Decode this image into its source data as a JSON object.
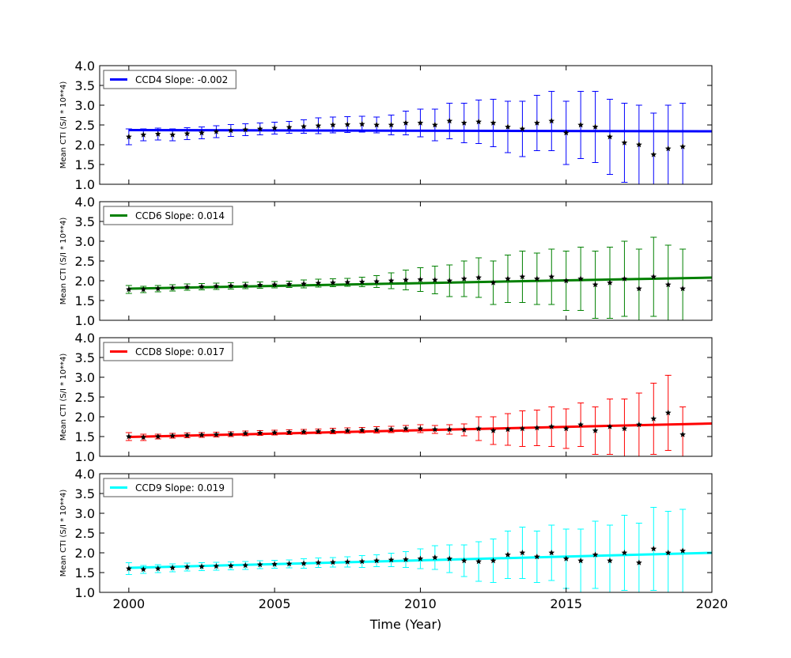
{
  "chart_data": [
    {
      "type": "scatter",
      "series_name": "CCD4 Slope: -0.002",
      "color": "#0000ff",
      "ylabel": "Mean CTI (S/I * 10**4)",
      "xlim": [
        1999,
        2020
      ],
      "ylim": [
        1.0,
        4.0
      ],
      "x": [
        2000.0,
        2000.5,
        2001.0,
        2001.5,
        2002.0,
        2002.5,
        2003.0,
        2003.5,
        2004.0,
        2004.5,
        2005.0,
        2005.5,
        2006.0,
        2006.5,
        2007.0,
        2007.5,
        2008.0,
        2008.5,
        2009.0,
        2009.5,
        2010.0,
        2010.5,
        2011.0,
        2011.5,
        2012.0,
        2012.5,
        2013.0,
        2013.5,
        2014.0,
        2014.5,
        2015.0,
        2015.5,
        2016.0,
        2016.5,
        2017.0,
        2017.5,
        2018.0,
        2018.5,
        2019.0
      ],
      "y": [
        2.2,
        2.25,
        2.27,
        2.25,
        2.28,
        2.3,
        2.33,
        2.36,
        2.38,
        2.4,
        2.42,
        2.44,
        2.46,
        2.48,
        2.5,
        2.51,
        2.52,
        2.5,
        2.5,
        2.55,
        2.55,
        2.5,
        2.6,
        2.55,
        2.58,
        2.55,
        2.45,
        2.4,
        2.55,
        2.6,
        2.3,
        2.5,
        2.45,
        2.2,
        2.05,
        2.0,
        1.75,
        1.9,
        1.95
      ],
      "err": [
        0.2,
        0.15,
        0.15,
        0.15,
        0.15,
        0.15,
        0.15,
        0.15,
        0.15,
        0.15,
        0.15,
        0.15,
        0.17,
        0.2,
        0.2,
        0.2,
        0.2,
        0.2,
        0.25,
        0.3,
        0.35,
        0.4,
        0.45,
        0.5,
        0.55,
        0.6,
        0.65,
        0.7,
        0.7,
        0.75,
        0.8,
        0.85,
        0.9,
        0.95,
        1.0,
        1.0,
        1.05,
        1.1,
        1.1
      ],
      "fit": {
        "x": [
          2000,
          2020
        ],
        "y": [
          2.37,
          2.34
        ]
      }
    },
    {
      "type": "scatter",
      "series_name": "CCD6 Slope: 0.014",
      "color": "#008000",
      "ylabel": "Mean CTI (S/I * 10**4)",
      "xlim": [
        1999,
        2020
      ],
      "ylim": [
        1.0,
        4.0
      ],
      "x": [
        2000.0,
        2000.5,
        2001.0,
        2001.5,
        2002.0,
        2002.5,
        2003.0,
        2003.5,
        2004.0,
        2004.5,
        2005.0,
        2005.5,
        2006.0,
        2006.5,
        2007.0,
        2007.5,
        2008.0,
        2008.5,
        2009.0,
        2009.5,
        2010.0,
        2010.5,
        2011.0,
        2011.5,
        2012.0,
        2012.5,
        2013.0,
        2013.5,
        2014.0,
        2014.5,
        2015.0,
        2015.5,
        2016.0,
        2016.5,
        2017.0,
        2017.5,
        2018.0,
        2018.5,
        2019.0
      ],
      "y": [
        1.78,
        1.78,
        1.8,
        1.82,
        1.84,
        1.85,
        1.86,
        1.87,
        1.88,
        1.89,
        1.9,
        1.91,
        1.92,
        1.94,
        1.95,
        1.96,
        1.97,
        1.98,
        2.0,
        2.02,
        2.03,
        2.02,
        2.0,
        2.05,
        2.08,
        1.95,
        2.05,
        2.1,
        2.05,
        2.1,
        2.0,
        2.05,
        1.9,
        1.95,
        2.05,
        1.8,
        2.1,
        1.9,
        1.8
      ],
      "err": [
        0.1,
        0.08,
        0.08,
        0.08,
        0.08,
        0.08,
        0.08,
        0.08,
        0.08,
        0.08,
        0.08,
        0.08,
        0.1,
        0.1,
        0.1,
        0.1,
        0.12,
        0.15,
        0.2,
        0.25,
        0.3,
        0.35,
        0.4,
        0.45,
        0.5,
        0.55,
        0.6,
        0.65,
        0.65,
        0.7,
        0.75,
        0.8,
        0.85,
        0.9,
        0.95,
        1.0,
        1.0,
        1.0,
        1.0
      ],
      "fit": {
        "x": [
          2000,
          2020
        ],
        "y": [
          1.8,
          2.08
        ]
      }
    },
    {
      "type": "scatter",
      "series_name": "CCD8 Slope: 0.017",
      "color": "#ff0000",
      "ylabel": "Mean CTI (S/I * 10**4)",
      "xlim": [
        1999,
        2020
      ],
      "ylim": [
        1.0,
        4.0
      ],
      "x": [
        2000.0,
        2000.5,
        2001.0,
        2001.5,
        2002.0,
        2002.5,
        2003.0,
        2003.5,
        2004.0,
        2004.5,
        2005.0,
        2005.5,
        2006.0,
        2006.5,
        2007.0,
        2007.5,
        2008.0,
        2008.5,
        2009.0,
        2009.5,
        2010.0,
        2010.5,
        2011.0,
        2011.5,
        2012.0,
        2012.5,
        2013.0,
        2013.5,
        2014.0,
        2014.5,
        2015.0,
        2015.5,
        2016.0,
        2016.5,
        2017.0,
        2017.5,
        2018.0,
        2018.5,
        2019.0
      ],
      "y": [
        1.5,
        1.48,
        1.5,
        1.52,
        1.53,
        1.54,
        1.55,
        1.56,
        1.58,
        1.59,
        1.6,
        1.61,
        1.62,
        1.63,
        1.64,
        1.65,
        1.66,
        1.67,
        1.68,
        1.7,
        1.7,
        1.68,
        1.68,
        1.67,
        1.7,
        1.65,
        1.68,
        1.7,
        1.72,
        1.75,
        1.7,
        1.8,
        1.65,
        1.75,
        1.7,
        1.8,
        1.95,
        2.1,
        1.55
      ],
      "err": [
        0.1,
        0.08,
        0.06,
        0.06,
        0.06,
        0.06,
        0.06,
        0.06,
        0.06,
        0.06,
        0.06,
        0.06,
        0.06,
        0.06,
        0.07,
        0.07,
        0.07,
        0.08,
        0.08,
        0.08,
        0.1,
        0.1,
        0.12,
        0.15,
        0.3,
        0.35,
        0.4,
        0.45,
        0.45,
        0.5,
        0.5,
        0.55,
        0.6,
        0.7,
        0.75,
        0.8,
        0.9,
        0.95,
        0.7
      ],
      "fit": {
        "x": [
          2000,
          2020
        ],
        "y": [
          1.49,
          1.83
        ]
      }
    },
    {
      "type": "scatter",
      "series_name": "CCD9 Slope: 0.019",
      "color": "#00ffff",
      "ylabel": "Mean CTI (S/I * 10**4)",
      "xlabel": "Time (Year)",
      "xlim": [
        1999,
        2020
      ],
      "ylim": [
        1.0,
        4.0
      ],
      "x": [
        2000.0,
        2000.5,
        2001.0,
        2001.5,
        2002.0,
        2002.5,
        2003.0,
        2003.5,
        2004.0,
        2004.5,
        2005.0,
        2005.5,
        2006.0,
        2006.5,
        2007.0,
        2007.5,
        2008.0,
        2008.5,
        2009.0,
        2009.5,
        2010.0,
        2010.5,
        2011.0,
        2011.5,
        2012.0,
        2012.5,
        2013.0,
        2013.5,
        2014.0,
        2014.5,
        2015.0,
        2015.5,
        2016.0,
        2016.5,
        2017.0,
        2017.5,
        2018.0,
        2018.5,
        2019.0
      ],
      "y": [
        1.6,
        1.58,
        1.6,
        1.62,
        1.64,
        1.65,
        1.66,
        1.67,
        1.68,
        1.7,
        1.71,
        1.72,
        1.73,
        1.75,
        1.76,
        1.77,
        1.78,
        1.8,
        1.82,
        1.83,
        1.85,
        1.88,
        1.85,
        1.8,
        1.78,
        1.8,
        1.95,
        2.0,
        1.9,
        2.0,
        1.85,
        1.8,
        1.95,
        1.8,
        2.0,
        1.75,
        2.1,
        2.0,
        2.05
      ],
      "err": [
        0.15,
        0.1,
        0.1,
        0.1,
        0.1,
        0.1,
        0.1,
        0.1,
        0.1,
        0.1,
        0.1,
        0.1,
        0.12,
        0.12,
        0.12,
        0.13,
        0.15,
        0.15,
        0.17,
        0.2,
        0.25,
        0.3,
        0.35,
        0.4,
        0.5,
        0.55,
        0.6,
        0.65,
        0.65,
        0.7,
        0.75,
        0.8,
        0.85,
        0.9,
        0.95,
        1.0,
        1.05,
        1.05,
        1.05
      ],
      "fit": {
        "x": [
          2000,
          2020
        ],
        "y": [
          1.62,
          2.0
        ]
      }
    }
  ],
  "axes": {
    "yticks": [
      "1.0",
      "1.5",
      "2.0",
      "2.5",
      "3.0",
      "3.5",
      "4.0"
    ],
    "xticks": [
      "2000",
      "2005",
      "2010",
      "2015",
      "2020"
    ],
    "legend_position": "top-left",
    "marker_color": "#000000",
    "grid": false
  }
}
